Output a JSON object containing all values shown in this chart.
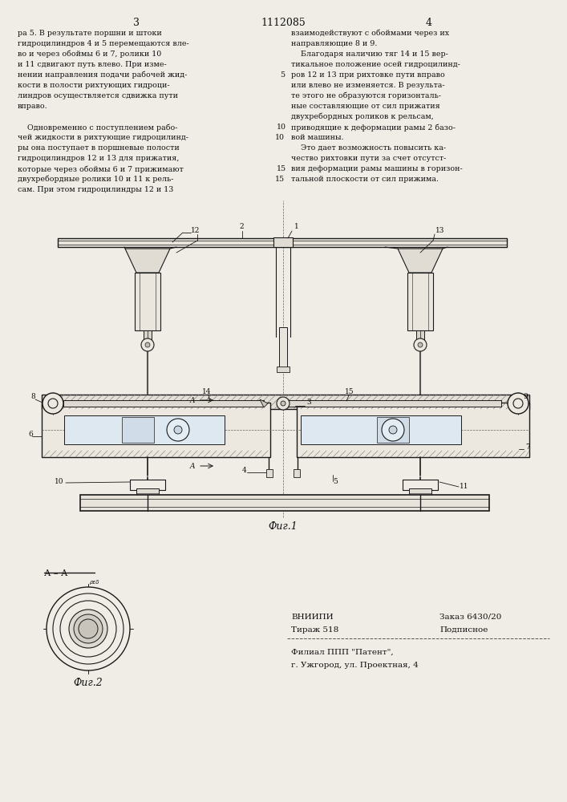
{
  "page_bg": "#f0ede6",
  "text_color": "#111111",
  "patent_number": "1112085",
  "page_left_num": "3",
  "page_right_num": "4",
  "left_col_lines": [
    "ра 5. В результате поршни и штоки",
    "гидроцилиндров 4 и 5 перемещаются вле-",
    "во и через обоймы 6 и 7, ролики 10",
    "и 11 сдвигают путь влево. При изме-",
    "нении направления подачи рабочей жид-",
    "кости в полости рихтующих гидроци-",
    "линдров осуществляется сдвижка пути",
    "вправо.",
    "",
    "    Одновременно с поступлением рабо-",
    "чей жидкости в рихтующие гидроцилинд-",
    "ры она поступает в поршневые полости",
    "гидроцилиндров 12 и 13 для прижатия,",
    "которые через обоймы 6 и 7 прижимают",
    "двухребордные ролики 10 и 11 к рель-",
    "сам. При этом гидроцилиндры 12 и 13"
  ],
  "left_line_nums": {
    "4": "5",
    "10": "10",
    "14": "15"
  },
  "right_col_lines": [
    "взаимодействуют с обоймами через их",
    "направляющие 8 и 9.",
    "    Благодаря наличию тяг 14 и 15 вер-",
    "тикальное положение осей гидроцилинд-",
    "ров 12 и 13 при рихтовке пути вправо",
    "или влево не изменяется. В результа-",
    "те этого не образуются горизонталь-",
    "ные составляющие от сил прижатия",
    "двухребордных роликов к рельсам,",
    "приводящие к деформации рамы 2 базо-",
    "вой машины.",
    "    Это дает возможность повысить ка-",
    "чество рихтовки пути за счет отсутст-",
    "вия деформации рамы машины в горизон-",
    "тальной плоскости от сил прижима."
  ],
  "right_line_nums": {
    "9": "10",
    "13": "15"
  },
  "fig1_caption": "Фиг.1",
  "fig2_caption": "Фиг.2",
  "aa_label": "А – А",
  "vnipi": "ВНИИПИ",
  "zakaz": "Заказ 6430/20",
  "tirazh": "Тираж 518",
  "podpisnoe": "Подписное",
  "filial": "Филиал ППП \"Патент\",",
  "address": "г. Ужгород, ул. Проектная, 4",
  "draw_color": "#1a1a1a",
  "hatch_color": "#555555"
}
